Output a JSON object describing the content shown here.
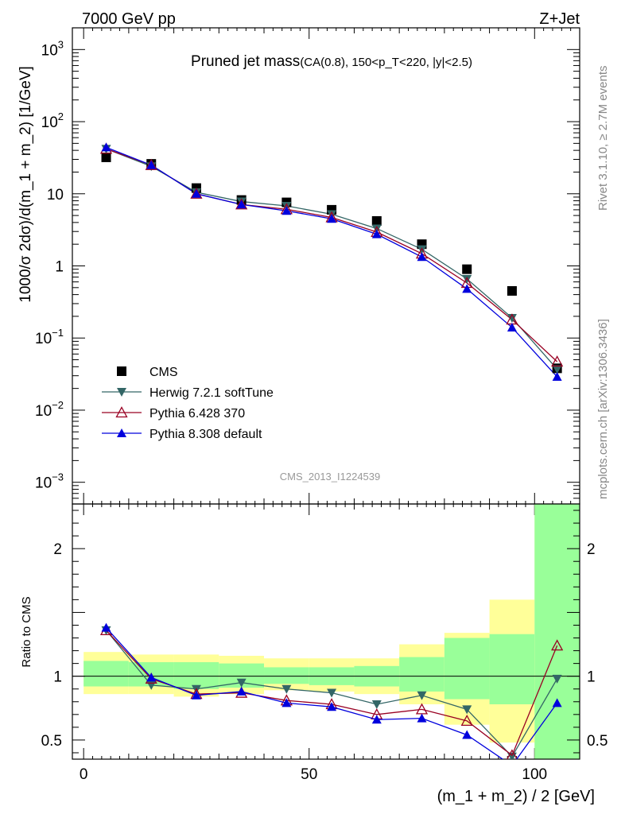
{
  "header": {
    "left": "7000 GeV pp",
    "right": "Z+Jet"
  },
  "side_labels": {
    "rivet": "Rivet 3.1.10, ≥ 2.7M events",
    "mcplots": "mcplots.cern.ch [arXiv:1306.3436]"
  },
  "analysis_id": "CMS_2013_I1224539",
  "colors": {
    "cms": "#000000",
    "herwig": "#336666",
    "pythia6": "#990022",
    "pythia8": "#0000dd",
    "band_yellow": "#ffff99",
    "band_green": "#99ff99"
  },
  "chart_data": [
    {
      "type": "line",
      "title": "Pruned jet mass",
      "subtitle": "(CA(0.8), 150<p_T<220, |y|<2.5)",
      "xlabel": "",
      "ylabel": "1000/σ 2dσ)/d(m_1 + m_2) [1/GeV]",
      "yscale": "log",
      "xlim": [
        -2.5,
        110
      ],
      "ylim": [
        0.0005,
        2000
      ],
      "ytick_labels": [
        "10^-3",
        "10^-2",
        "10^-1",
        "1",
        "10",
        "10^2",
        "10^3"
      ],
      "x": [
        5,
        15,
        25,
        35,
        45,
        55,
        65,
        75,
        85,
        95,
        105
      ],
      "series": [
        {
          "name": "CMS",
          "marker": "square",
          "values": [
            32,
            26,
            12,
            8.2,
            7.6,
            6.0,
            4.2,
            2.0,
            0.9,
            0.45,
            0.038
          ]
        },
        {
          "name": "Herwig 7.2.1 softTune",
          "marker": "triangle-down",
          "values": [
            42,
            24,
            10.5,
            7.8,
            6.8,
            5.2,
            3.3,
            1.7,
            0.66,
            0.19,
            0.037
          ]
        },
        {
          "name": "Pythia 6.428 370",
          "marker": "triangle-up-open",
          "values": [
            42,
            25,
            10,
            7.1,
            6.1,
            4.7,
            2.95,
            1.48,
            0.58,
            0.18,
            0.047
          ]
        },
        {
          "name": "Pythia 8.308 default",
          "marker": "triangle-up",
          "values": [
            44,
            25,
            10,
            7.1,
            5.8,
            4.5,
            2.75,
            1.33,
            0.48,
            0.14,
            0.029
          ]
        }
      ],
      "legend_position": "left"
    },
    {
      "type": "line",
      "title": "",
      "xlabel": "(m_1 + m_2) / 2 [GeV]",
      "ylabel": "Ratio to CMS",
      "xlim": [
        -2.5,
        110
      ],
      "ylim": [
        0.35,
        2.35
      ],
      "xticks": [
        0,
        50,
        100
      ],
      "yticks": [
        0.5,
        1,
        2
      ],
      "bins": [
        [
          0,
          10
        ],
        [
          10,
          20
        ],
        [
          20,
          30
        ],
        [
          30,
          40
        ],
        [
          40,
          50
        ],
        [
          50,
          60
        ],
        [
          60,
          70
        ],
        [
          70,
          80
        ],
        [
          80,
          90
        ],
        [
          90,
          100
        ],
        [
          100,
          110
        ]
      ],
      "band_yellow": [
        [
          0.86,
          1.19
        ],
        [
          0.86,
          1.17
        ],
        [
          0.84,
          1.17
        ],
        [
          0.86,
          1.16
        ],
        [
          0.89,
          1.14
        ],
        [
          0.88,
          1.14
        ],
        [
          0.86,
          1.14
        ],
        [
          0.78,
          1.25
        ],
        [
          0.62,
          1.34
        ],
        [
          0.48,
          1.6
        ],
        [
          0.35,
          2.35
        ]
      ],
      "band_green": [
        [
          0.92,
          1.12
        ],
        [
          0.92,
          1.11
        ],
        [
          0.9,
          1.11
        ],
        [
          0.91,
          1.1
        ],
        [
          0.94,
          1.07
        ],
        [
          0.93,
          1.07
        ],
        [
          0.92,
          1.08
        ],
        [
          0.88,
          1.15
        ],
        [
          0.82,
          1.3
        ],
        [
          0.78,
          1.33
        ],
        [
          0.35,
          2.35
        ]
      ],
      "series": [
        {
          "name": "Herwig 7.2.1 softTune",
          "values": [
            1.36,
            0.93,
            0.9,
            0.95,
            0.9,
            0.87,
            0.78,
            0.85,
            0.74,
            0.37,
            0.98
          ]
        },
        {
          "name": "Pythia 6.428 370",
          "values": [
            1.36,
            0.98,
            0.86,
            0.87,
            0.81,
            0.78,
            0.7,
            0.74,
            0.65,
            0.38,
            1.24
          ]
        },
        {
          "name": "Pythia 8.308 default",
          "values": [
            1.38,
            0.99,
            0.85,
            0.88,
            0.79,
            0.76,
            0.66,
            0.67,
            0.54,
            0.3,
            0.79
          ]
        }
      ]
    }
  ]
}
